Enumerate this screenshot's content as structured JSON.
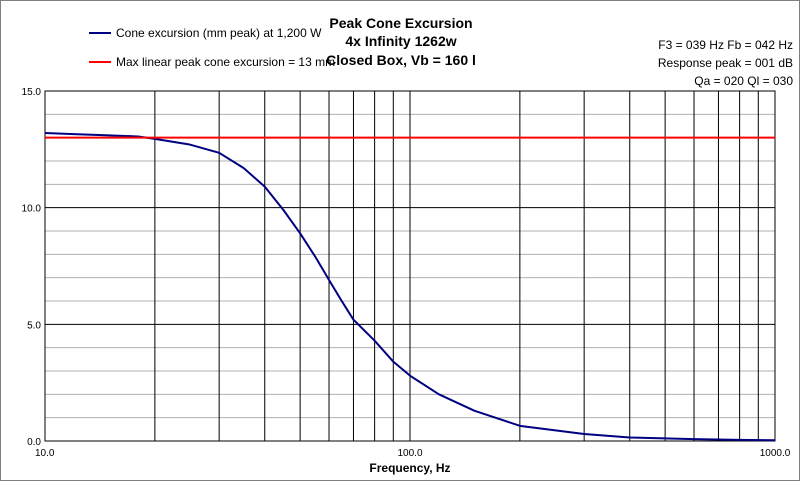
{
  "chart_data": {
    "type": "line",
    "title": [
      "Peak Cone Excursion",
      "4x Infinity 1262w",
      "Closed Box, Vb = 160 l"
    ],
    "xlabel": "Frequency, Hz",
    "ylabel": "",
    "x_scale": "log",
    "xlim": [
      10,
      1000
    ],
    "ylim": [
      0,
      15
    ],
    "x_tick_labels": [
      "10.0",
      "100.0",
      "1000.0"
    ],
    "y_tick_labels": [
      "0.0",
      "5.0",
      "10.0",
      "15.0"
    ],
    "grid": true,
    "legend_position": "top-left",
    "info_lines": [
      "F3 = 039 Hz  Fb = 042 Hz",
      "Response peak = 001 dB",
      "Qa = 020  Ql = 030"
    ],
    "series": [
      {
        "name": "Cone excursion (mm peak) at 1,200 W",
        "color": "#000080",
        "x": [
          10,
          12,
          15,
          18,
          20,
          25,
          30,
          35,
          40,
          45,
          50,
          55,
          60,
          65,
          70,
          80,
          90,
          100,
          120,
          150,
          200,
          300,
          400,
          600,
          800,
          1000
        ],
        "y": [
          13.2,
          13.15,
          13.1,
          13.05,
          12.95,
          12.7,
          12.35,
          11.7,
          10.9,
          9.9,
          8.9,
          7.9,
          6.9,
          6.0,
          5.2,
          4.3,
          3.4,
          2.8,
          2.0,
          1.3,
          0.65,
          0.3,
          0.15,
          0.08,
          0.05,
          0.03
        ]
      },
      {
        "name": "Max linear peak cone excursion = 13 mm",
        "color": "#ff0000",
        "x": [
          10,
          1000
        ],
        "y": [
          13,
          13
        ]
      }
    ]
  }
}
